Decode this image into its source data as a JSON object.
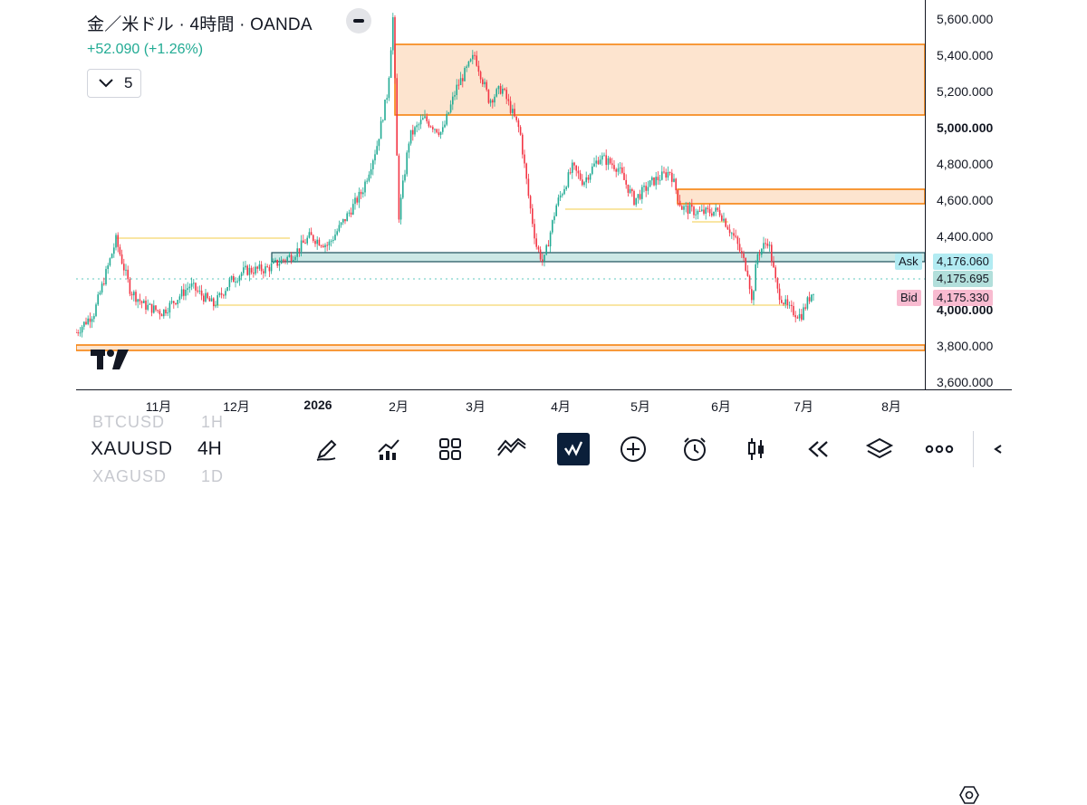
{
  "legend": {
    "title": "金／米ドル · 4時間 · OANDA",
    "change": "+52.090 (+1.26%)",
    "indicator_count": "5"
  },
  "price_axis": {
    "labels": [
      {
        "value": "5,600.000",
        "bold": false
      },
      {
        "value": "5,400.000",
        "bold": false
      },
      {
        "value": "5,200.000",
        "bold": false
      },
      {
        "value": "5,000.000",
        "bold": true
      },
      {
        "value": "4,800.000",
        "bold": false
      },
      {
        "value": "4,600.000",
        "bold": false
      },
      {
        "value": "4,400.000",
        "bold": false
      },
      {
        "value": "4,000.000",
        "bold": true
      },
      {
        "value": "3,800.000",
        "bold": false
      },
      {
        "value": "3,600.000",
        "bold": false
      }
    ],
    "ask_label": "Ask",
    "ask_price": "4,176.060",
    "last_price": "4,175.695",
    "bid_label": "Bid",
    "bid_price": "4,175.330"
  },
  "time_axis": {
    "labels": [
      {
        "text": "11月",
        "bold": false
      },
      {
        "text": "12月",
        "bold": false
      },
      {
        "text": "2026",
        "bold": true
      },
      {
        "text": "2月",
        "bold": false
      },
      {
        "text": "3月",
        "bold": false
      },
      {
        "text": "4月",
        "bold": false
      },
      {
        "text": "5月",
        "bold": false
      },
      {
        "text": "6月",
        "bold": false
      },
      {
        "text": "7月",
        "bold": false
      },
      {
        "text": "8月",
        "bold": false
      }
    ]
  },
  "bottom_bar": {
    "symbol_prev": "BTCUSD",
    "tf_prev": "1H",
    "symbol": "XAUUSD",
    "timeframe": "4H",
    "symbol_next": "XAGUSD",
    "tf_next": "1D",
    "tools": [
      "drawing-pen-icon",
      "bar-chart-icon",
      "grid-icon",
      "indicator-wave-icon",
      "watchlist-check-icon",
      "add-circle-icon",
      "alarm-clock-icon",
      "candles-icon",
      "rewind-icon",
      "layers-icon",
      "more-icon",
      "collapse-arrow-icon"
    ]
  },
  "colors": {
    "up": "#22ab94",
    "down": "#f23645",
    "zone_orange": "#f57c00",
    "zone_fill": "#fde4cf",
    "teal_zone": "#cde9e6",
    "ask_bg": "#b2ebf2",
    "bid_bg": "#f8bbd0",
    "last_bg": "#b2dfdb"
  }
}
